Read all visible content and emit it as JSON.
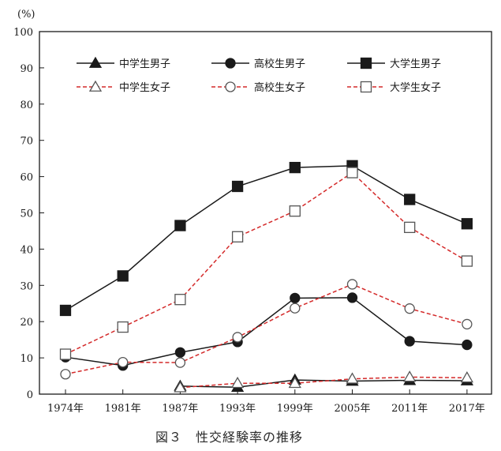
{
  "caption": "図３　性交経験率の推移",
  "chart_data": {
    "type": "line",
    "ylabel": "(%)",
    "ylim": [
      0,
      100
    ],
    "yticks": [
      0,
      10,
      20,
      30,
      40,
      50,
      60,
      70,
      80,
      90,
      100
    ],
    "categories": [
      "1974年",
      "1981年",
      "1987年",
      "1993年",
      "1999年",
      "2005年",
      "2011年",
      "2017年"
    ],
    "legend_position": "top",
    "series": [
      {
        "name": "中学生男子",
        "values": [
          null,
          null,
          2.2,
          1.9,
          3.9,
          3.6,
          3.8,
          3.7
        ],
        "color": "#1a1a1a",
        "dashed": false,
        "marker": "triangle",
        "filled": true
      },
      {
        "name": "高校生男子",
        "values": [
          10.2,
          7.9,
          11.5,
          14.4,
          26.5,
          26.6,
          14.6,
          13.6
        ],
        "color": "#1a1a1a",
        "dashed": false,
        "marker": "circle",
        "filled": true
      },
      {
        "name": "大学生男子",
        "values": [
          23.1,
          32.6,
          46.5,
          57.3,
          62.5,
          63.0,
          53.7,
          47.0
        ],
        "color": "#1a1a1a",
        "dashed": false,
        "marker": "square",
        "filled": true
      },
      {
        "name": "中学生女子",
        "values": [
          null,
          null,
          1.8,
          3.0,
          3.0,
          4.2,
          4.7,
          4.5
        ],
        "color": "#d42a2a",
        "dashed": true,
        "marker": "triangle",
        "filled": false
      },
      {
        "name": "高校生女子",
        "values": [
          5.5,
          8.8,
          8.7,
          15.7,
          23.7,
          30.3,
          23.6,
          19.3
        ],
        "color": "#d42a2a",
        "dashed": true,
        "marker": "circle",
        "filled": false
      },
      {
        "name": "大学生女子",
        "values": [
          11.0,
          18.5,
          26.1,
          43.4,
          50.5,
          61.1,
          46.0,
          36.7
        ],
        "color": "#d42a2a",
        "dashed": true,
        "marker": "square",
        "filled": false
      }
    ]
  }
}
